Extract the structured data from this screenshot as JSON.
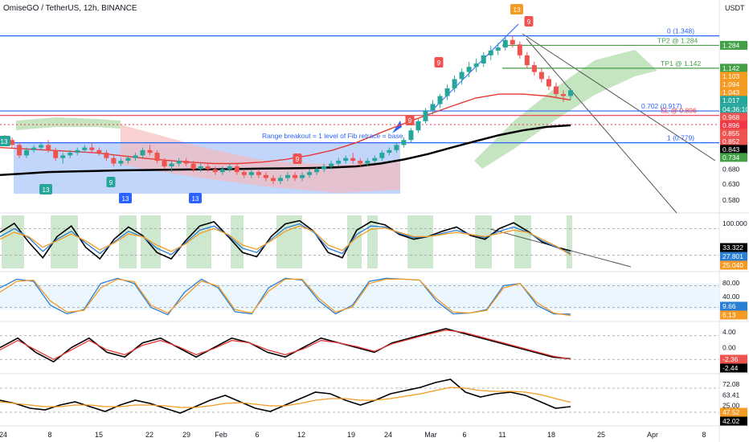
{
  "header": {
    "symbol_title": "OmiseGO / TetherUS, 12h, BINANCE",
    "currency": "USDT"
  },
  "colors": {
    "up": "#26a69a",
    "down": "#ef5350",
    "level_blue": "#2962ff",
    "level_green": "#43a047",
    "sl_red": "#f23645",
    "cloud_green": "#b7dfb0",
    "cloud_red": "#f7b8b8",
    "range_box": "#8fb3f5",
    "ema_black": "#000000",
    "ma_red": "#e53935",
    "ma_orange": "#f59a23",
    "osc_blue": "#2a7fd4",
    "green_band": "#c8e6c9"
  },
  "chart_data": [
    {
      "type": "candlestick",
      "title": "OmiseGO / TetherUS, 12h, BINANCE",
      "ylabel": "USDT",
      "scale": "log",
      "ylim": [
        0.55,
        1.48
      ],
      "x_ticks": [
        "24",
        "8",
        "15",
        "22",
        "29",
        "Feb",
        "6",
        "12",
        "19",
        "24",
        "Mar",
        "6",
        "11",
        "18",
        "25",
        "Apr",
        "8"
      ],
      "y_ticks": [
        0.58,
        0.63,
        0.68
      ],
      "y_tick_labels": [
        "0.580",
        "0.630",
        "0.680"
      ],
      "candles_approx": [
        [
          0.8,
          0.81,
          0.78,
          0.79
        ],
        [
          0.79,
          0.8,
          0.76,
          0.77
        ],
        [
          0.77,
          0.78,
          0.72,
          0.73
        ],
        [
          0.73,
          0.76,
          0.72,
          0.75
        ],
        [
          0.75,
          0.77,
          0.74,
          0.76
        ],
        [
          0.76,
          0.78,
          0.75,
          0.77
        ],
        [
          0.77,
          0.79,
          0.74,
          0.75
        ],
        [
          0.75,
          0.76,
          0.71,
          0.72
        ],
        [
          0.72,
          0.74,
          0.7,
          0.73
        ],
        [
          0.73,
          0.75,
          0.72,
          0.74
        ],
        [
          0.74,
          0.76,
          0.73,
          0.75
        ],
        [
          0.75,
          0.77,
          0.74,
          0.76
        ],
        [
          0.76,
          0.78,
          0.74,
          0.75
        ],
        [
          0.75,
          0.76,
          0.73,
          0.74
        ],
        [
          0.74,
          0.75,
          0.71,
          0.72
        ],
        [
          0.72,
          0.73,
          0.69,
          0.7
        ],
        [
          0.7,
          0.72,
          0.69,
          0.71
        ],
        [
          0.71,
          0.73,
          0.7,
          0.72
        ],
        [
          0.72,
          0.74,
          0.71,
          0.73
        ],
        [
          0.73,
          0.76,
          0.72,
          0.75
        ],
        [
          0.75,
          0.77,
          0.73,
          0.74
        ],
        [
          0.74,
          0.75,
          0.7,
          0.71
        ],
        [
          0.71,
          0.72,
          0.68,
          0.69
        ],
        [
          0.69,
          0.71,
          0.67,
          0.7
        ],
        [
          0.7,
          0.72,
          0.69,
          0.71
        ],
        [
          0.71,
          0.72,
          0.69,
          0.7
        ],
        [
          0.7,
          0.71,
          0.67,
          0.68
        ],
        [
          0.68,
          0.7,
          0.67,
          0.69
        ],
        [
          0.69,
          0.7,
          0.67,
          0.68
        ],
        [
          0.68,
          0.69,
          0.66,
          0.67
        ],
        [
          0.67,
          0.69,
          0.66,
          0.68
        ],
        [
          0.68,
          0.7,
          0.67,
          0.69
        ],
        [
          0.69,
          0.7,
          0.66,
          0.67
        ],
        [
          0.67,
          0.68,
          0.65,
          0.66
        ],
        [
          0.66,
          0.68,
          0.65,
          0.67
        ],
        [
          0.67,
          0.68,
          0.65,
          0.66
        ],
        [
          0.66,
          0.67,
          0.64,
          0.65
        ],
        [
          0.65,
          0.66,
          0.63,
          0.64
        ],
        [
          0.64,
          0.66,
          0.63,
          0.65
        ],
        [
          0.65,
          0.67,
          0.64,
          0.66
        ],
        [
          0.66,
          0.67,
          0.64,
          0.65
        ],
        [
          0.65,
          0.67,
          0.64,
          0.66
        ],
        [
          0.66,
          0.68,
          0.65,
          0.67
        ],
        [
          0.67,
          0.69,
          0.66,
          0.68
        ],
        [
          0.68,
          0.7,
          0.67,
          0.69
        ],
        [
          0.69,
          0.71,
          0.68,
          0.7
        ],
        [
          0.7,
          0.72,
          0.69,
          0.71
        ],
        [
          0.71,
          0.73,
          0.7,
          0.72
        ],
        [
          0.72,
          0.74,
          0.7,
          0.71
        ],
        [
          0.71,
          0.72,
          0.69,
          0.7
        ],
        [
          0.7,
          0.72,
          0.69,
          0.71
        ],
        [
          0.71,
          0.73,
          0.7,
          0.72
        ],
        [
          0.72,
          0.75,
          0.71,
          0.74
        ],
        [
          0.74,
          0.76,
          0.73,
          0.75
        ],
        [
          0.75,
          0.78,
          0.74,
          0.77
        ],
        [
          0.77,
          0.8,
          0.76,
          0.79
        ],
        [
          0.79,
          0.84,
          0.78,
          0.83
        ],
        [
          0.83,
          0.88,
          0.82,
          0.87
        ],
        [
          0.87,
          0.93,
          0.86,
          0.92
        ],
        [
          0.92,
          0.97,
          0.9,
          0.95
        ],
        [
          0.95,
          1.0,
          0.93,
          0.99
        ],
        [
          0.99,
          1.05,
          0.97,
          1.03
        ],
        [
          1.03,
          1.1,
          1.01,
          1.08
        ],
        [
          1.08,
          1.14,
          1.05,
          1.12
        ],
        [
          1.12,
          1.18,
          1.09,
          1.15
        ],
        [
          1.15,
          1.2,
          1.12,
          1.17
        ],
        [
          1.17,
          1.24,
          1.15,
          1.22
        ],
        [
          1.22,
          1.28,
          1.19,
          1.25
        ],
        [
          1.25,
          1.3,
          1.22,
          1.27
        ],
        [
          1.27,
          1.34,
          1.25,
          1.32
        ],
        [
          1.32,
          1.35,
          1.27,
          1.29
        ],
        [
          1.29,
          1.31,
          1.2,
          1.22
        ],
        [
          1.22,
          1.24,
          1.14,
          1.16
        ],
        [
          1.16,
          1.18,
          1.1,
          1.12
        ],
        [
          1.12,
          1.14,
          1.06,
          1.08
        ],
        [
          1.08,
          1.1,
          1.02,
          1.04
        ],
        [
          1.04,
          1.06,
          0.98,
          1.0
        ],
        [
          1.0,
          1.02,
          0.96,
          0.99
        ],
        [
          0.99,
          1.03,
          0.97,
          1.02
        ]
      ],
      "series": [
        {
          "name": "",
          "role": "ema-slow",
          "values": [
            0.66,
            0.665,
            0.67,
            0.672,
            0.674,
            0.676,
            0.677,
            0.678,
            0.679,
            0.68,
            0.681,
            0.682,
            0.683,
            0.684,
            0.686,
            0.69,
            0.7,
            0.715,
            0.735,
            0.76,
            0.785,
            0.81,
            0.83,
            0.845,
            0.852
          ]
        },
        {
          "name": "",
          "role": "ma-red",
          "values": [
            0.76,
            0.755,
            0.75,
            0.745,
            0.74,
            0.73,
            0.72,
            0.712,
            0.705,
            0.7,
            0.7,
            0.705,
            0.715,
            0.73,
            0.75,
            0.78,
            0.82,
            0.86,
            0.9,
            0.94,
            0.98,
            1.0,
            1.0,
            0.99,
            0.97
          ]
        }
      ],
      "levels": [
        {
          "label": "0 (1.348)",
          "value": 1.348
        },
        {
          "label": "TP2 @ 1.284",
          "value": 1.284
        },
        {
          "label": "TP1 @ 1.142",
          "value": 1.142
        },
        {
          "label": "0.702 (0.917)",
          "value": 0.917
        },
        {
          "label": "SL @ 0.896",
          "value": 0.896
        },
        {
          "label": "1 (0.779)",
          "value": 0.779
        }
      ],
      "price_tags": [
        {
          "text": "1.284"
        },
        {
          "text": "1.142"
        },
        {
          "text": "1.103"
        },
        {
          "text": "1.094"
        },
        {
          "text": "1.043"
        },
        {
          "text": "1.017"
        },
        {
          "text": "04:36:10"
        },
        {
          "text": "0.968"
        },
        {
          "text": "0.896"
        },
        {
          "text": "0.855"
        },
        {
          "text": "0.852"
        },
        {
          "text": "0.843"
        },
        {
          "text": "0.734"
        }
      ],
      "annotations": [
        {
          "text": "Range breakout = 1 level of Fib retrace = base"
        },
        {
          "text": "13"
        },
        {
          "text": "9"
        },
        {
          "text": "9"
        },
        {
          "text": "9"
        },
        {
          "text": "9"
        },
        {
          "text": "13"
        },
        {
          "text": "9"
        },
        {
          "text": "13"
        },
        {
          "text": "13"
        },
        {
          "text": "13"
        }
      ]
    },
    {
      "type": "line",
      "role": "oscillator-1",
      "y_ticks": [
        "100.000"
      ],
      "value_tags": [
        "33.322",
        "27.801",
        "25.040"
      ],
      "series": [
        {
          "name": "",
          "color": "#000000",
          "values": [
            68,
            85,
            50,
            20,
            60,
            80,
            40,
            18,
            55,
            78,
            62,
            30,
            18,
            52,
            80,
            88,
            60,
            30,
            22,
            60,
            84,
            90,
            70,
            30,
            20,
            72,
            88,
            82,
            64,
            55,
            60,
            70,
            78,
            62,
            55,
            75,
            86,
            70,
            50,
            40,
            33
          ]
        },
        {
          "name": "",
          "color": "#2a7fd4",
          "values": [
            60,
            75,
            58,
            32,
            55,
            70,
            48,
            28,
            50,
            70,
            60,
            38,
            26,
            48,
            72,
            80,
            62,
            38,
            30,
            55,
            76,
            84,
            68,
            38,
            28,
            64,
            80,
            78,
            66,
            58,
            60,
            66,
            72,
            64,
            58,
            70,
            78,
            68,
            52,
            40,
            28
          ]
        },
        {
          "name": "",
          "color": "#f59a23",
          "values": [
            55,
            68,
            60,
            40,
            52,
            65,
            52,
            35,
            48,
            65,
            60,
            44,
            32,
            46,
            66,
            75,
            64,
            44,
            36,
            52,
            70,
            80,
            70,
            44,
            34,
            58,
            74,
            76,
            68,
            60,
            60,
            64,
            68,
            64,
            60,
            66,
            72,
            68,
            55,
            42,
            25
          ]
        }
      ]
    },
    {
      "type": "line",
      "role": "oscillator-2",
      "y_ticks": [
        "80.00",
        "40.00"
      ],
      "value_tags": [
        "9.66",
        "6.13"
      ],
      "series": [
        {
          "name": "",
          "color": "#2a7fd4",
          "values": [
            70,
            90,
            85,
            30,
            10,
            20,
            80,
            92,
            80,
            25,
            8,
            60,
            90,
            70,
            15,
            10,
            70,
            92,
            88,
            40,
            10,
            30,
            85,
            92,
            90,
            88,
            40,
            10,
            12,
            20,
            75,
            80,
            30,
            10,
            9.66
          ]
        },
        {
          "name": "",
          "color": "#f59a23",
          "values": [
            60,
            85,
            88,
            40,
            14,
            18,
            70,
            90,
            84,
            30,
            12,
            50,
            86,
            74,
            20,
            12,
            62,
            90,
            90,
            46,
            14,
            26,
            80,
            90,
            90,
            88,
            46,
            14,
            12,
            18,
            70,
            80,
            36,
            12,
            6.13
          ]
        }
      ]
    },
    {
      "type": "line",
      "role": "macd-like",
      "y_ticks": [
        "4.00",
        "0.00"
      ],
      "value_tags": [
        "-2.36",
        "-2.44"
      ],
      "series": [
        {
          "name": "",
          "color": "#000000",
          "values": [
            0,
            2,
            -1,
            -3,
            0,
            2,
            -1,
            -2,
            1,
            2,
            0,
            -2,
            0,
            2,
            1,
            -1,
            -2,
            0,
            2,
            1,
            0,
            -1,
            1,
            2,
            3,
            4,
            3,
            2,
            1,
            0,
            -1,
            -2,
            -2.36
          ]
        },
        {
          "name": "",
          "color": "#e53935",
          "values": [
            -0.5,
            1.5,
            -0.5,
            -2.5,
            -0.5,
            1.5,
            -0.5,
            -1.5,
            0.5,
            1.5,
            0.2,
            -1.5,
            -0.2,
            1.5,
            1.0,
            -0.5,
            -1.5,
            -0.3,
            1.5,
            1.0,
            0.2,
            -0.8,
            0.8,
            1.8,
            2.8,
            3.7,
            3.2,
            2.2,
            1.2,
            0.2,
            -0.8,
            -1.8,
            -2.44
          ]
        }
      ]
    },
    {
      "type": "line",
      "role": "rsi-like",
      "y_ticks": [
        "72.08",
        "63.41",
        "25.00"
      ],
      "value_tags": [
        "47.52",
        "42.02"
      ],
      "series": [
        {
          "name": "",
          "color": "#000000",
          "values": [
            50,
            46,
            40,
            38,
            44,
            48,
            42,
            36,
            44,
            50,
            46,
            40,
            34,
            42,
            50,
            56,
            48,
            40,
            36,
            44,
            52,
            60,
            58,
            50,
            44,
            50,
            58,
            62,
            66,
            72,
            76,
            60,
            54,
            58,
            60,
            56,
            48,
            40,
            42
          ]
        },
        {
          "name": "",
          "color": "#f59a23",
          "values": [
            48,
            46,
            44,
            42,
            42,
            44,
            44,
            42,
            42,
            44,
            44,
            43,
            41,
            41,
            43,
            46,
            47,
            45,
            43,
            43,
            46,
            50,
            52,
            52,
            50,
            50,
            52,
            55,
            58,
            62,
            66,
            65,
            62,
            61,
            61,
            60,
            57,
            52,
            47.52
          ]
        }
      ]
    }
  ],
  "x_axis_labels": [
    "24",
    "8",
    "15",
    "22",
    "29",
    "Feb",
    "6",
    "12",
    "19",
    "24",
    "Mar",
    "6",
    "11",
    "18",
    "25",
    "Apr",
    "8"
  ]
}
